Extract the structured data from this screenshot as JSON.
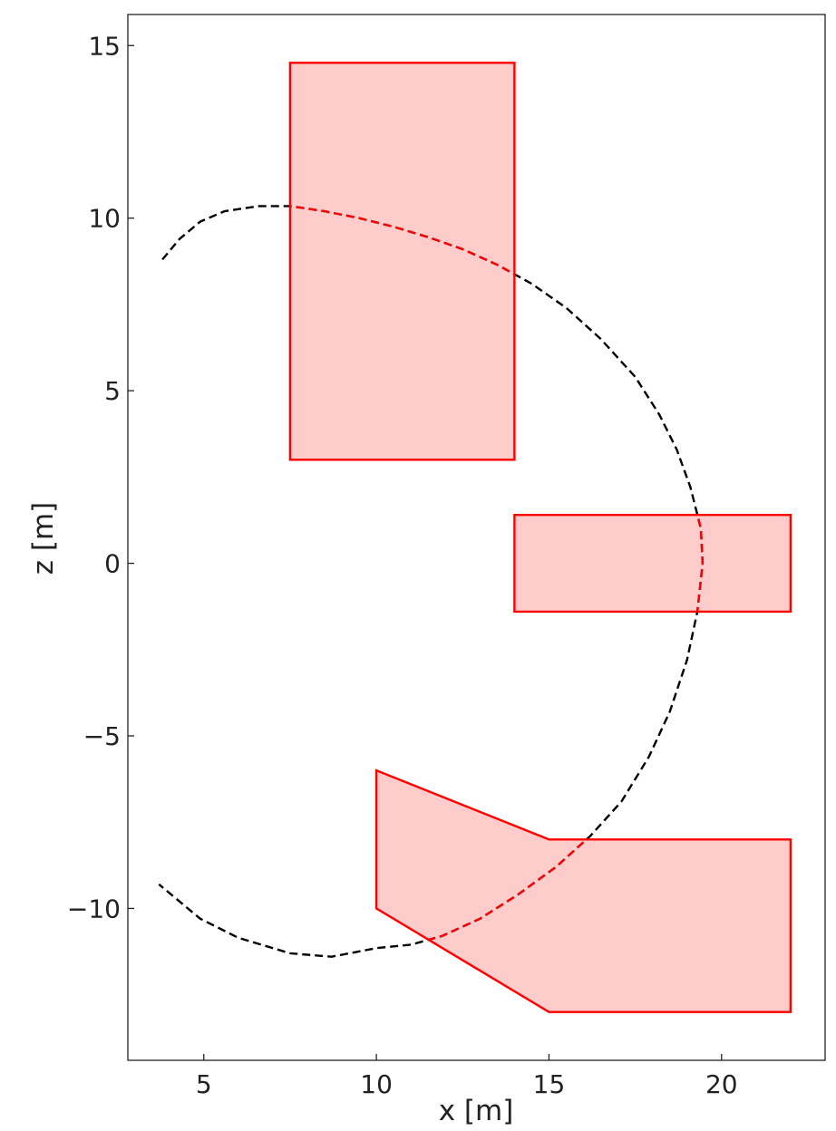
{
  "chart_data": {
    "type": "line",
    "title": "",
    "xlabel": "x [m]",
    "ylabel": "z [m]",
    "xlim": [
      2.8,
      23.0
    ],
    "ylim": [
      -14.4,
      15.9
    ],
    "grid": false,
    "x_ticks": [
      5,
      10,
      15,
      20
    ],
    "x_tick_labels": [
      "5",
      "10",
      "15",
      "20"
    ],
    "y_ticks": [
      15,
      10,
      5,
      0,
      -5,
      -10
    ],
    "y_tick_labels": [
      "15",
      "10",
      "5",
      "0",
      "−5",
      "−10"
    ],
    "polygons": [
      {
        "points": [
          [
            7.5,
            3.0
          ],
          [
            14.0,
            3.0
          ],
          [
            14.0,
            14.5
          ],
          [
            7.5,
            14.5
          ]
        ]
      },
      {
        "points": [
          [
            14.0,
            -1.4
          ],
          [
            22.0,
            -1.4
          ],
          [
            22.0,
            1.4
          ],
          [
            14.0,
            1.4
          ]
        ]
      },
      {
        "points": [
          [
            10.0,
            -6.0
          ],
          [
            15.0,
            -8.0
          ],
          [
            22.0,
            -8.0
          ],
          [
            22.0,
            -13.0
          ],
          [
            15.0,
            -13.0
          ],
          [
            10.0,
            -10.0
          ]
        ]
      }
    ],
    "series": [
      {
        "style": "dashed",
        "x": [
          3.8,
          4.3,
          4.9,
          5.6,
          6.6,
          7.5,
          8.5,
          9.5,
          10.5,
          11.5,
          12.5,
          13.5,
          14.5,
          15.5,
          16.5,
          17.5,
          18.2,
          18.7,
          19.1,
          19.4,
          19.45,
          19.3,
          19.0,
          18.5,
          17.9,
          17.1,
          16.2,
          15.2,
          14.1,
          13.0,
          11.9,
          11.0,
          10.0,
          8.7,
          7.5,
          6.0,
          4.9,
          3.7
        ],
        "y": [
          8.8,
          9.4,
          9.9,
          10.2,
          10.35,
          10.35,
          10.2,
          10.0,
          9.75,
          9.45,
          9.1,
          8.65,
          8.1,
          7.4,
          6.5,
          5.4,
          4.3,
          3.3,
          2.2,
          1.0,
          0.0,
          -1.4,
          -2.8,
          -4.3,
          -5.6,
          -6.9,
          -7.9,
          -8.8,
          -9.6,
          -10.3,
          -10.8,
          -11.05,
          -11.15,
          -11.4,
          -11.3,
          -10.85,
          -10.3,
          -9.3
        ]
      }
    ]
  }
}
